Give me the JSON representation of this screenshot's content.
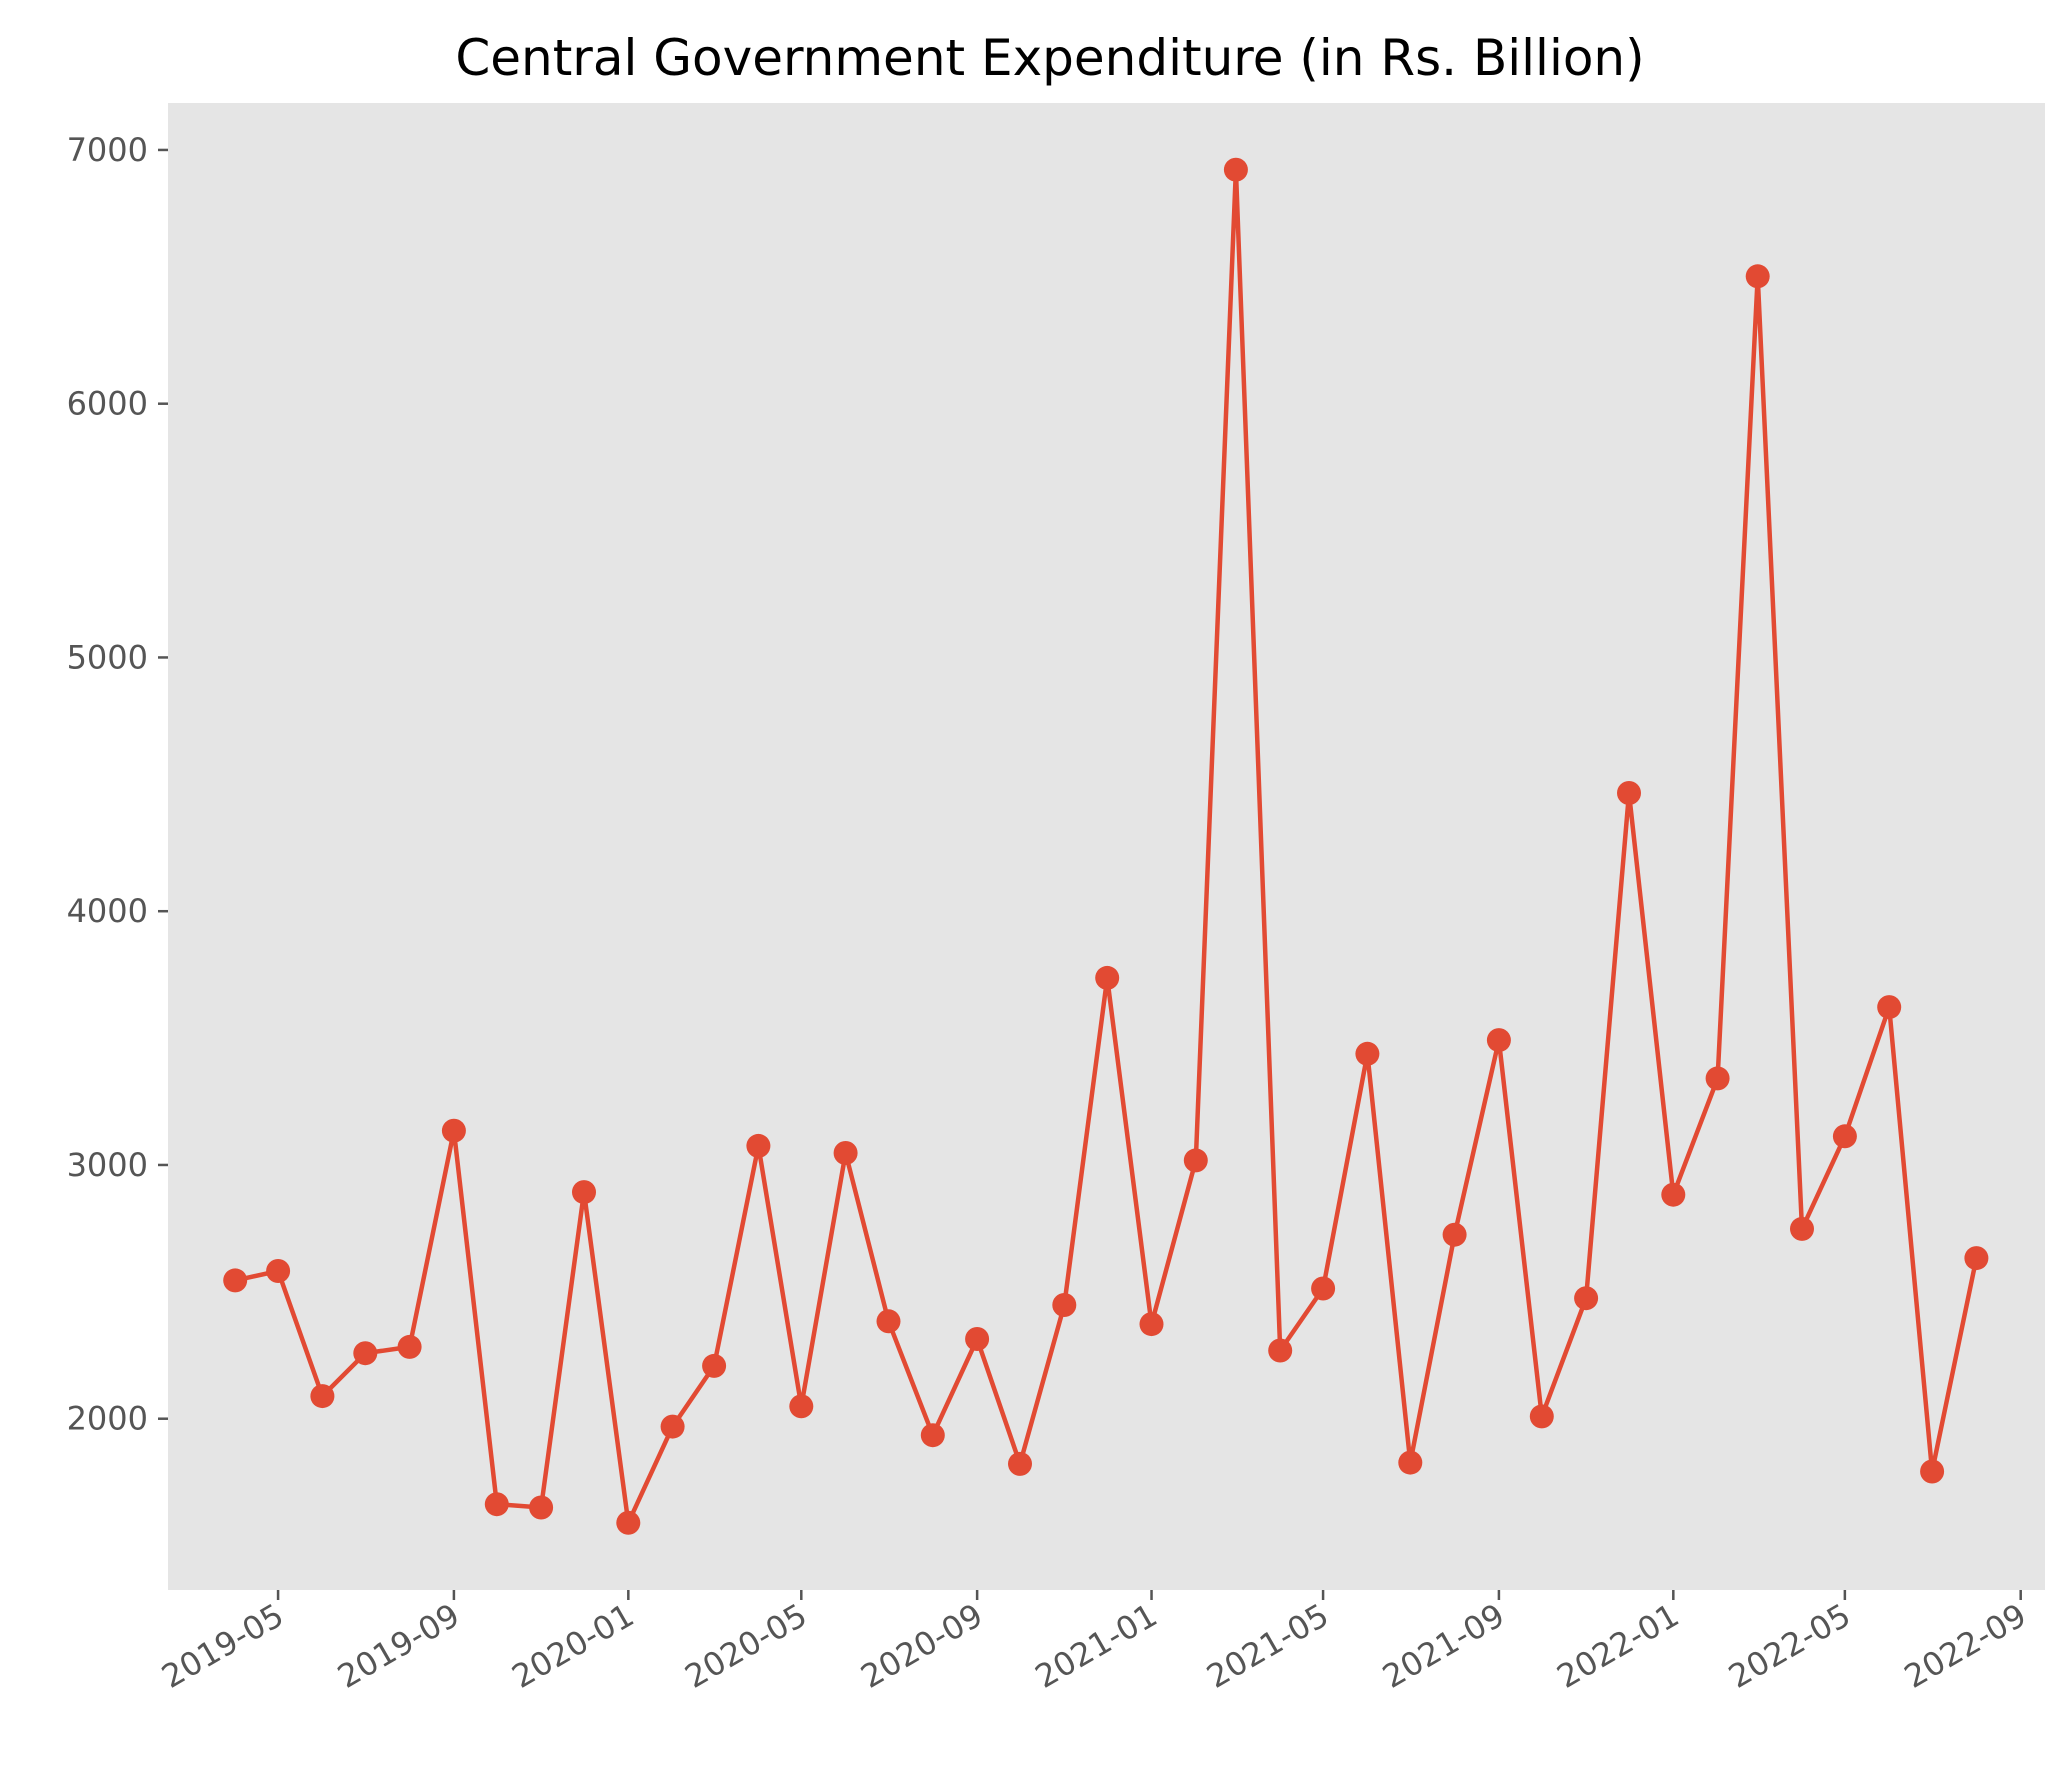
{
  "chart_data": {
    "type": "line",
    "title": "Central Government Expenditure (in Rs. Billion)",
    "xlabel": "",
    "ylabel": "",
    "x": [
      "2019-04",
      "2019-05",
      "2019-06",
      "2019-07",
      "2019-08",
      "2019-09",
      "2019-10",
      "2019-11",
      "2019-12",
      "2020-01",
      "2020-02",
      "2020-03",
      "2020-04",
      "2020-05",
      "2020-06",
      "2020-07",
      "2020-08",
      "2020-09",
      "2020-10",
      "2020-11",
      "2020-12",
      "2021-01",
      "2021-02",
      "2021-03",
      "2021-04",
      "2021-05",
      "2021-06",
      "2021-07",
      "2021-08",
      "2021-09",
      "2021-10",
      "2021-11",
      "2021-12",
      "2022-01",
      "2022-02",
      "2022-03",
      "2022-04",
      "2022-05",
      "2022-06",
      "2022-07",
      "2022-08"
    ],
    "series": [
      {
        "values": [
          2545,
          2582,
          2089,
          2258,
          2283,
          3135,
          1663,
          1650,
          2893,
          1590,
          1969,
          2208,
          3075,
          2049,
          3047,
          2384,
          1935,
          2314,
          1822,
          2448,
          3737,
          2373,
          3018,
          6922,
          2269,
          2513,
          3438,
          1827,
          2725,
          3492,
          2009,
          2475,
          4466,
          2883,
          3341,
          6502,
          2748,
          3113,
          3622,
          1792,
          2633
        ]
      }
    ],
    "xticks": [
      "2019-05",
      "2019-09",
      "2020-01",
      "2020-05",
      "2020-09",
      "2021-01",
      "2021-05",
      "2021-09",
      "2022-01",
      "2022-05",
      "2022-09"
    ],
    "yticks": [
      2000,
      3000,
      4000,
      5000,
      6000,
      7000
    ],
    "xlim": [
      "2019-02-13",
      "2022-09-18"
    ],
    "ylim": [
      1325,
      7185
    ],
    "grid": false,
    "legend": "none",
    "colors": {
      "line": "#E24A33",
      "plot_background": "#E5E5E5",
      "tick_label": "#555555"
    }
  }
}
